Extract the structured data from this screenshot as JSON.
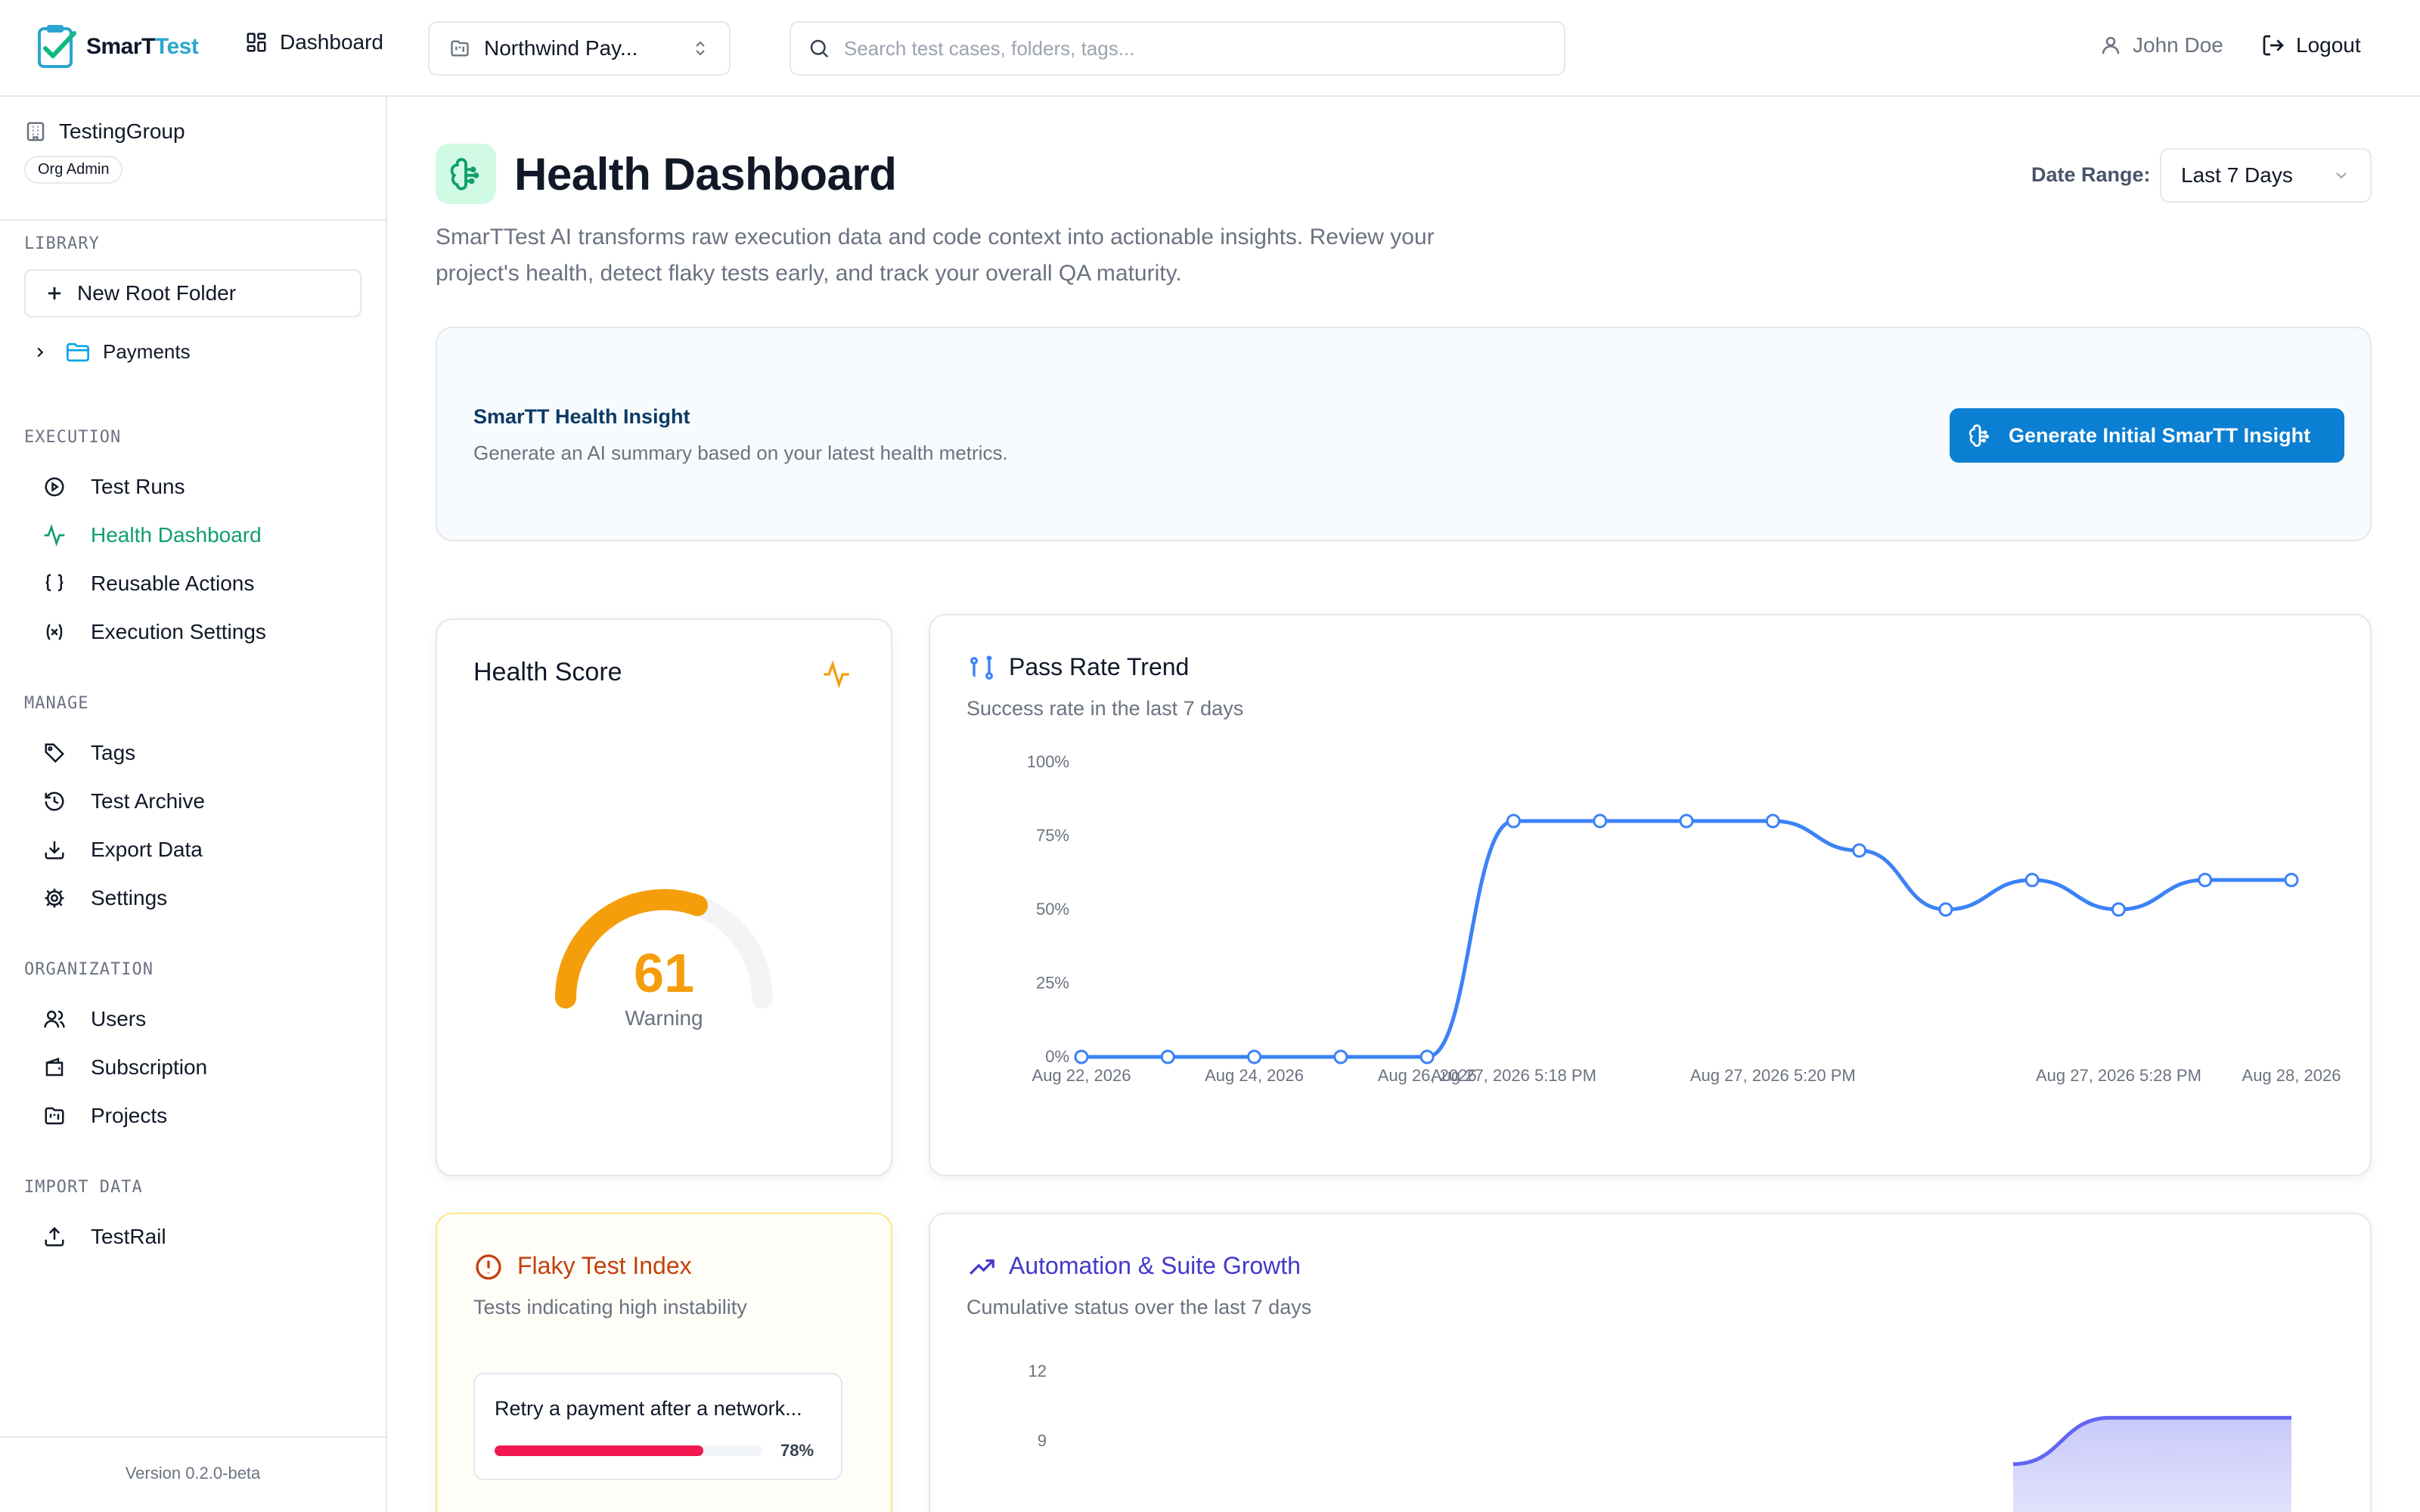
{
  "app": {
    "name_main": "SmarT",
    "name_accent": "Test"
  },
  "topbar": {
    "dashboard_label": "Dashboard",
    "project_label": "Northwind Pay...",
    "search_placeholder": "Search test cases, folders, tags...",
    "user_name": "John Doe",
    "logout_label": "Logout"
  },
  "sidebar": {
    "org_name": "TestingGroup",
    "org_role": "Org Admin",
    "library_label": "LIBRARY",
    "new_root_folder_label": "New Root Folder",
    "folders": [
      "Payments"
    ],
    "execution_label": "EXECUTION",
    "execution_items": [
      {
        "label": "Test Runs",
        "icon": "play-circle-icon"
      },
      {
        "label": "Health Dashboard",
        "icon": "activity-icon",
        "active": true
      },
      {
        "label": "Reusable Actions",
        "icon": "braces-icon"
      },
      {
        "label": "Execution Settings",
        "icon": "variable-icon"
      }
    ],
    "manage_label": "MANAGE",
    "manage_items": [
      {
        "label": "Tags",
        "icon": "tag-icon"
      },
      {
        "label": "Test Archive",
        "icon": "history-icon"
      },
      {
        "label": "Export Data",
        "icon": "download-icon"
      },
      {
        "label": "Settings",
        "icon": "gear-icon"
      }
    ],
    "organization_label": "ORGANIZATION",
    "organization_items": [
      {
        "label": "Users",
        "icon": "users-icon"
      },
      {
        "label": "Subscription",
        "icon": "wallet-icon"
      },
      {
        "label": "Projects",
        "icon": "folder-kanban-icon"
      }
    ],
    "import_label": "IMPORT DATA",
    "import_items": [
      {
        "label": "TestRail",
        "icon": "upload-icon"
      }
    ],
    "version": "Version 0.2.0-beta"
  },
  "header": {
    "title": "Health Dashboard",
    "description": "SmarTTest AI transforms raw execution data and code context into actionable insights. Review your project's health, detect flaky tests early, and track your overall QA maturity.",
    "date_range_label": "Date Range:",
    "date_range_value": "Last 7 Days"
  },
  "insight": {
    "title": "SmarTT Health Insight",
    "subtitle": "Generate an AI summary based on your latest health metrics.",
    "button_label": "Generate Initial SmarTT Insight"
  },
  "health_score": {
    "title": "Health Score",
    "value": 61,
    "max": 100,
    "value_text": "61",
    "status": "Warning",
    "accent_color": "#f59e0b"
  },
  "flaky": {
    "title": "Flaky Test Index",
    "subtitle": "Tests indicating high instability",
    "items": [
      {
        "name": "Retry a payment after a network...",
        "percent": 78,
        "percent_text": "78%"
      }
    ],
    "accent_color": "#c2410c"
  },
  "pass_rate": {
    "title": "Pass Rate Trend",
    "subtitle": "Success rate in the last 7 days"
  },
  "growth": {
    "title": "Automation & Suite Growth",
    "subtitle": "Cumulative status over the last 7 days"
  },
  "chart_data": [
    {
      "type": "line",
      "title": "Pass Rate Trend",
      "subtitle": "Success rate in the last 7 days",
      "y_ticks": [
        "0%",
        "25%",
        "50%",
        "75%",
        "100%"
      ],
      "ylim": [
        0,
        100
      ],
      "x_tick_labels": [
        "Aug 22, 2026",
        "Aug 24, 2026",
        "Aug 26, 2026",
        "Aug 27, 2026 5:18 PM",
        "Aug 27, 2026 5:20 PM",
        "Aug 27, 2026 5:28 PM",
        "Aug 28, 2026"
      ],
      "x_tick_points": [
        0,
        2,
        4,
        5,
        8,
        12,
        14
      ],
      "values": [
        0,
        0,
        0,
        0,
        0,
        80,
        80,
        80,
        80,
        70,
        50,
        60,
        50,
        60,
        60
      ],
      "color": "#3b82f6",
      "grid": false
    },
    {
      "type": "area",
      "title": "Automation & Suite Growth",
      "subtitle": "Cumulative status over the last 7 days",
      "y_ticks": [
        "9",
        "12"
      ],
      "values_visible": [
        8,
        10,
        10,
        10
      ],
      "x_span_visible": [
        0.77,
        0.85,
        0.93,
        1.0
      ],
      "color": "#6366f1"
    }
  ]
}
